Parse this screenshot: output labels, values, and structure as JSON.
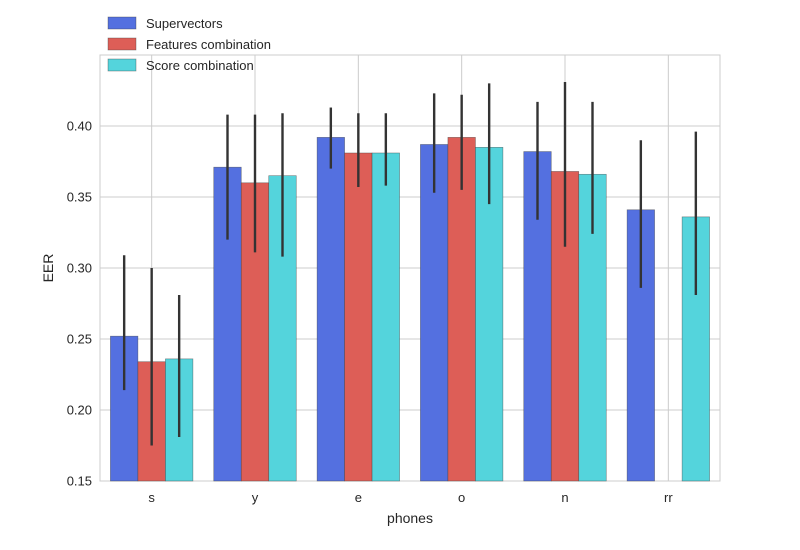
{
  "chart_data": {
    "type": "bar",
    "xlabel": "phones",
    "ylabel": "EER",
    "ylim": [
      0.15,
      0.45
    ],
    "yticks": [
      "0.15",
      "0.20",
      "0.25",
      "0.30",
      "0.35",
      "0.40"
    ],
    "categories": [
      "s",
      "y",
      "e",
      "o",
      "n",
      "rr"
    ],
    "grid": true,
    "legend_position": "top-left",
    "series": [
      {
        "name": "Supervectors",
        "color": "#5470e0",
        "values": [
          0.252,
          0.371,
          0.392,
          0.387,
          0.382,
          0.341
        ],
        "error_low": [
          0.214,
          0.32,
          0.37,
          0.353,
          0.334,
          0.286
        ],
        "error_high": [
          0.309,
          0.408,
          0.413,
          0.423,
          0.417,
          0.39
        ]
      },
      {
        "name": "Features combination",
        "color": "#dd5e57",
        "values": [
          0.234,
          0.36,
          0.381,
          0.392,
          0.368,
          null
        ],
        "error_low": [
          0.175,
          0.311,
          0.357,
          0.355,
          0.315,
          null
        ],
        "error_high": [
          0.3,
          0.408,
          0.409,
          0.422,
          0.431,
          null
        ]
      },
      {
        "name": "Score combination",
        "color": "#54d4dc",
        "values": [
          0.236,
          0.365,
          0.381,
          0.385,
          0.366,
          0.336
        ],
        "error_low": [
          0.181,
          0.308,
          0.358,
          0.345,
          0.324,
          0.281
        ],
        "error_high": [
          0.281,
          0.409,
          0.409,
          0.43,
          0.417,
          0.396
        ]
      }
    ]
  }
}
